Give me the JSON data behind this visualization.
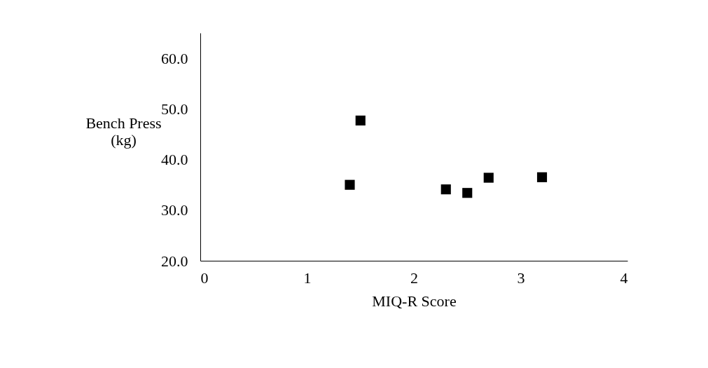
{
  "chart_data": {
    "type": "scatter",
    "xlabel": "MIQ-R Score",
    "ylabel": "Bench Press\n(kg)",
    "x": [
      1.4,
      1.5,
      2.3,
      2.5,
      2.7,
      3.2
    ],
    "series": [
      {
        "color": "#000000",
        "values": [
          35.0,
          47.7,
          34.1,
          33.4,
          36.4,
          36.5
        ]
      }
    ],
    "xlim": [
      0,
      4
    ],
    "xticks": [
      0,
      1,
      2,
      3,
      4
    ],
    "ylim": [
      20,
      65
    ],
    "yticks": [
      {
        "value": 20,
        "label": "20.0"
      },
      {
        "value": 30,
        "label": "30.0"
      },
      {
        "value": 40,
        "label": "40.0"
      },
      {
        "value": 50,
        "label": "50.0"
      },
      {
        "value": 60,
        "label": "60.0"
      }
    ],
    "marker": "square",
    "grid": false
  }
}
